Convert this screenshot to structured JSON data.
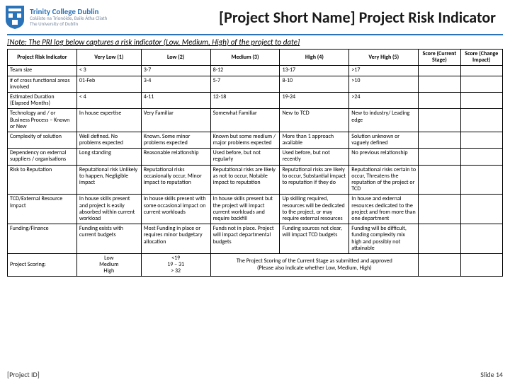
{
  "header": {
    "logo": {
      "line1": "Trinity College Dublin",
      "line2": "Coláiste na Tríonóide, Baile Átha Cliath",
      "line3": "The University of Dublin"
    },
    "title": "[Project Short Name] Project Risk Indicator"
  },
  "colors": {
    "brand": "#2b73b8"
  },
  "note": {
    "label": "[Note:",
    "text": " The PRI log below captures a risk indicator (Low, Medium, High) of the project to date]"
  },
  "table": {
    "headers": [
      "Project Risk Indicator",
      "Very Low (1)",
      "Low (2)",
      "Medium (3)",
      "High (4)",
      "Very High (5)",
      "Score (Current Stage)",
      "Score (Change Impact)"
    ],
    "rows": [
      {
        "label": "Team size",
        "cells": [
          "< 3",
          "3-7",
          "8-12",
          "13-17",
          ">17",
          "",
          ""
        ]
      },
      {
        "label": "# of cross functional areas involved",
        "cells": [
          "01-Feb",
          "3-4",
          "5-7",
          "8-10",
          ">10",
          "",
          ""
        ]
      },
      {
        "label": "Estimated Duration (Elapsed Months)",
        "cells": [
          "< 4",
          "4-11",
          "12-18",
          "19-24",
          ">24",
          "",
          ""
        ]
      },
      {
        "label": "Technology and / or Business Process – Known or New",
        "cells": [
          "In house expertise",
          "Very Familiar",
          "Somewhat Familiar",
          "New to TCD",
          "New to industry/ Leading edge",
          "",
          ""
        ]
      },
      {
        "label": "Complexity of solution",
        "cells": [
          "Well defined. No problems expected",
          "Known. Some minor problems expected",
          "Known but some medium / major problems expected",
          "More than 1 approach available",
          "Solution unknown or vaguely defined",
          "",
          ""
        ]
      },
      {
        "label": "Dependency on external suppliers / organisations",
        "cells": [
          "Long standing",
          "Reasonable relationship",
          "Used before, but not regularly",
          "Used before, but not recently",
          "No previous relationship",
          "",
          ""
        ]
      },
      {
        "label": "Risk to Reputation",
        "cells": [
          "Reputational risk Unlikely to happen, Negligible impact",
          "Reputational risks occasionally occur, Minor impact to reputation",
          "Reputational risks are likely as not to occur, Notable impact to reputation",
          "Reputational risks are likely to occur, Substantial impact to reputation if they do",
          "Reputational risks certain to occur, Threatens the reputation of the project or TCD",
          "",
          ""
        ]
      },
      {
        "label": "TCD/External Resource Impact",
        "cells": [
          "In house skills present and project is easily absorbed within current workload",
          "In house skills present with some occasional impact on current workloads",
          "In house skills present but the project will impact current workloads and require backfill",
          "Up skilling required, resources will be dedicated to the project, or may require external resources",
          "In house and external resources dedicated to the project and from more than one department",
          "",
          ""
        ]
      },
      {
        "label": "Funding/Finance",
        "cells": [
          "Funding exists with current budgets",
          "Most Funding in place or requires minor budgetary allocation",
          "Funds not in place. Project will impact departmental budgets",
          "Funding sources not clear, will impact TCD budgets",
          "Funding will be difficult, funding complexity mix high and possibly not attainable",
          "",
          ""
        ]
      }
    ],
    "scoring": {
      "label": "Project Scoring:",
      "levels": "Low\nMedium\nHigh",
      "ranges": "<19\n19 – 31\n> 32",
      "note": "The Project Scoring of the Current Stage as submitted and approved\n(Please also indicate whether Low, Medium, High)"
    }
  },
  "footer": {
    "left": "[Project ID]",
    "right": "Slide 14"
  }
}
